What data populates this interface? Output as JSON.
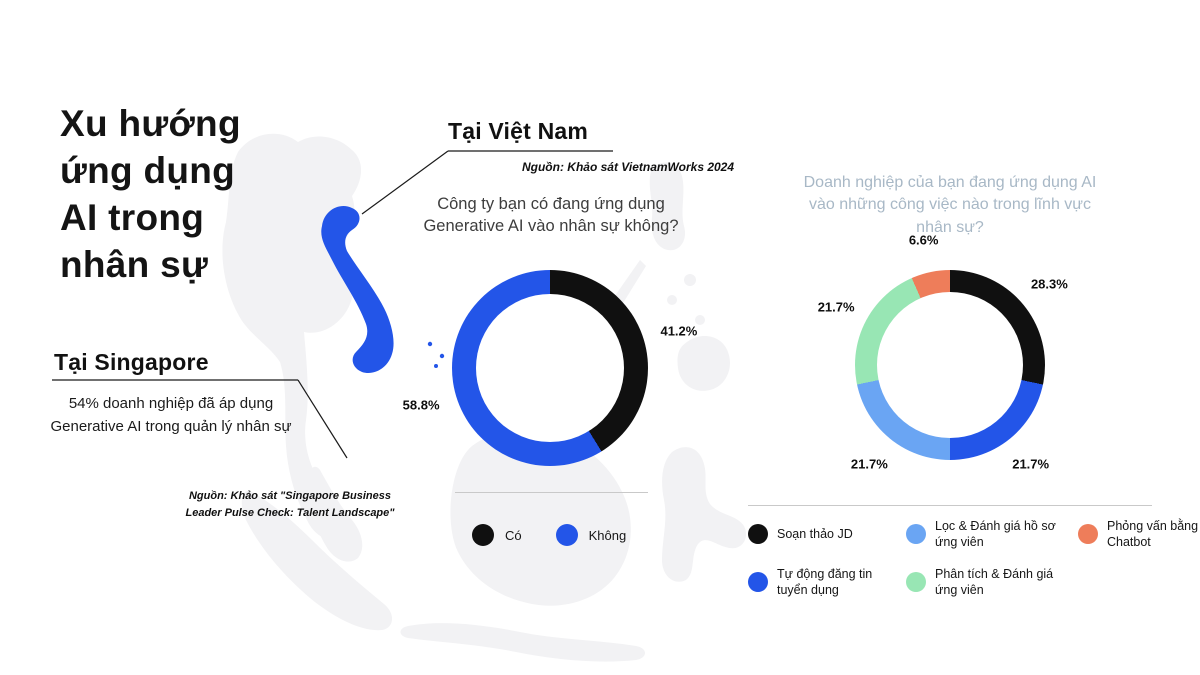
{
  "header": {
    "title_lines": [
      "Xu hướng",
      "ứng dụng",
      "AI trong",
      "nhân sự"
    ]
  },
  "singapore": {
    "heading": "Tại Singapore",
    "stat_text": "54% doanh nghiệp đã áp dụng Generative AI trong quản lý nhân sự",
    "source": "Nguồn: Khảo sát \"Singapore Business Leader Pulse Check: Talent Landscape\""
  },
  "vietnam": {
    "heading": "Tại Việt Nam",
    "source": "Nguồn: Khảo sát VietnamWorks 2024"
  },
  "colors": {
    "black": "#101010",
    "blue": "#2355e8",
    "light_blue": "#6aa5f3",
    "green": "#98e6b4",
    "orange": "#ee7d5a",
    "map_gray": "#f2f2f4",
    "muted_title": "#a8b8c6"
  },
  "chart_data": [
    {
      "type": "pie",
      "donut": true,
      "title": "Công ty bạn có đang ứng dụng Generative AI vào nhân sự không?",
      "labels": [
        "Có",
        "Không"
      ],
      "values": [
        41.2,
        58.8
      ],
      "colors": [
        "#101010",
        "#2355e8"
      ],
      "value_suffix": "%",
      "legend_position": "bottom"
    },
    {
      "type": "pie",
      "donut": true,
      "title": "Doanh nghiệp của bạn đang ứng dụng AI vào những công việc nào trong lĩnh vực nhân sự?",
      "labels": [
        "Soạn thảo JD",
        "Tự động đăng tin tuyển dụng",
        "Lọc & Đánh giá hồ sơ ứng viên",
        "Phân tích & Đánh giá ứng viên",
        "Phỏng vấn bằng Chatbot"
      ],
      "values": [
        28.3,
        21.7,
        21.7,
        21.7,
        6.6
      ],
      "colors": [
        "#101010",
        "#2355e8",
        "#6aa5f3",
        "#98e6b4",
        "#ee7d5a"
      ],
      "value_suffix": "%",
      "legend_position": "bottom"
    }
  ],
  "legend1": {
    "items": [
      {
        "label": "Có",
        "color": "#101010"
      },
      {
        "label": "Không",
        "color": "#2355e8"
      }
    ]
  },
  "legend2": {
    "items": [
      {
        "label": "Soạn thảo JD",
        "color": "#101010"
      },
      {
        "label": "Lọc & Đánh giá hồ sơ ứng viên",
        "color": "#6aa5f3"
      },
      {
        "label": "Phỏng vấn bằng Chatbot",
        "color": "#ee7d5a"
      },
      {
        "label": "Tự động đăng tin tuyển dụng",
        "color": "#2355e8"
      },
      {
        "label": "Phân tích & Đánh giá ứng viên",
        "color": "#98e6b4"
      }
    ]
  }
}
